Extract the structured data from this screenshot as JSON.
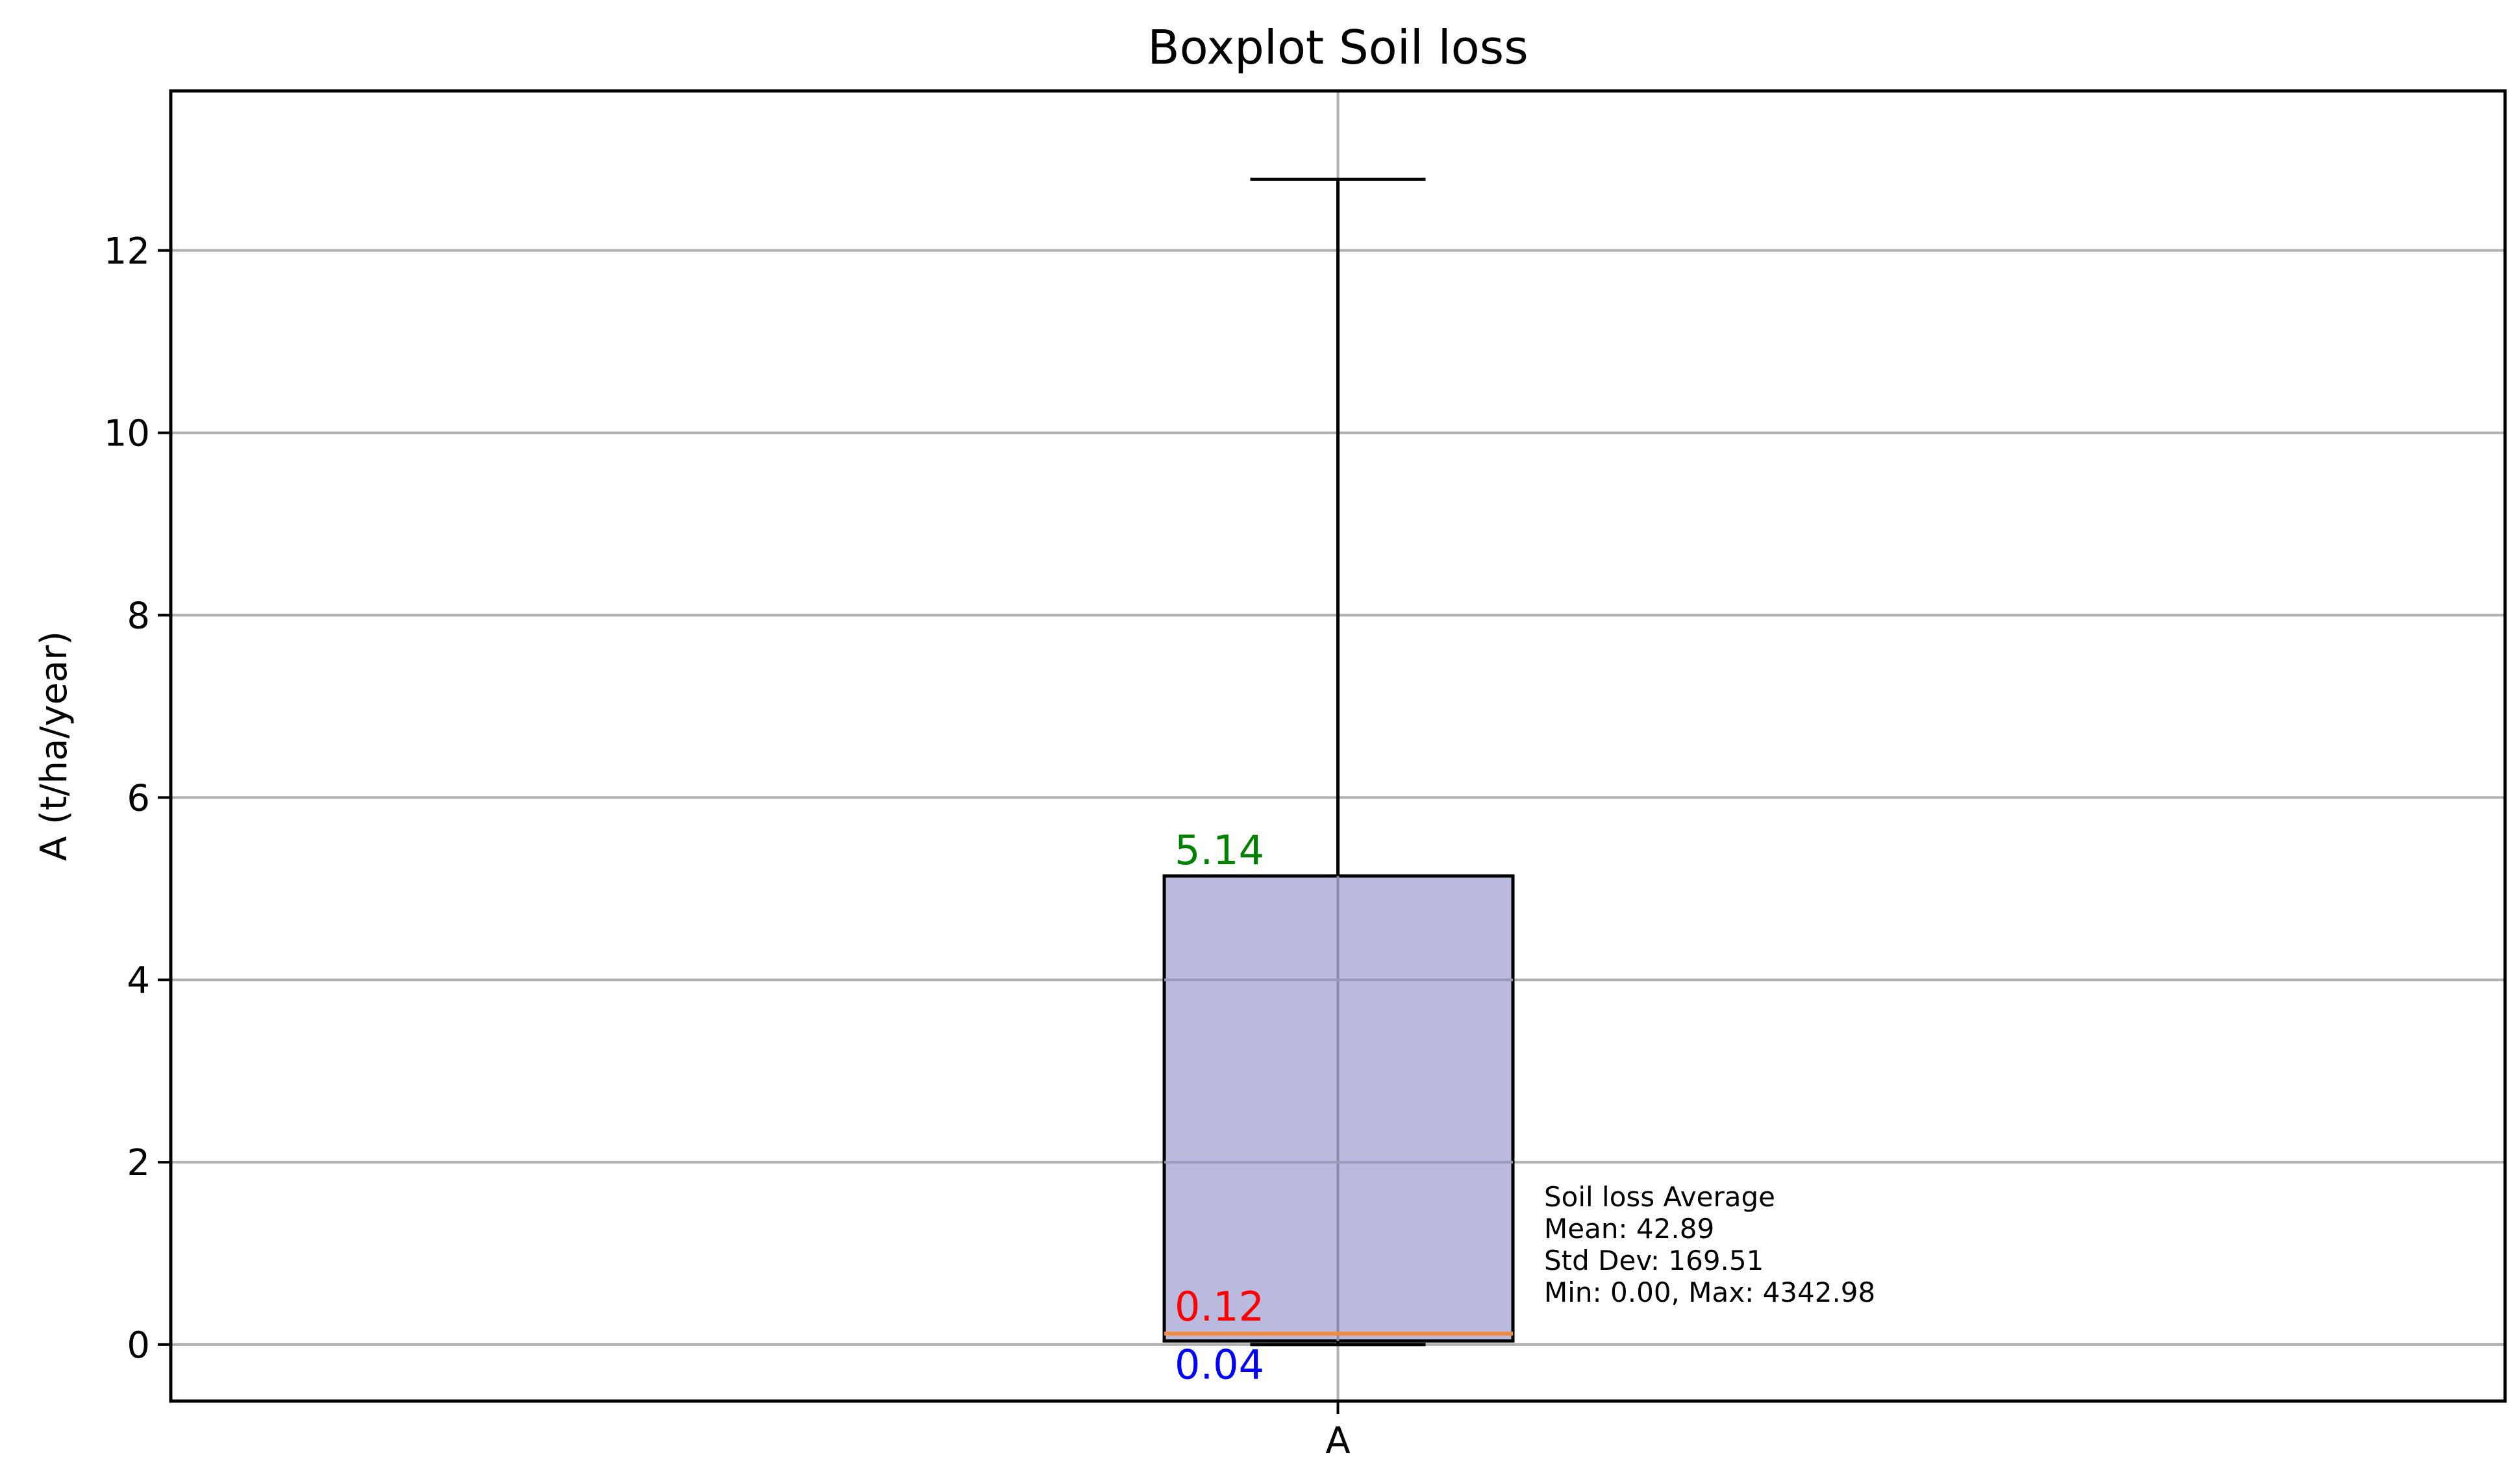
{
  "chart_data": {
    "type": "boxplot",
    "title": "Boxplot Soil loss",
    "xlabel": "",
    "ylabel": "A (t/ha/year)",
    "categories": [
      "A"
    ],
    "ylim": [
      -0.62,
      13.75
    ],
    "y_ticks": [
      0,
      2,
      4,
      6,
      8,
      10,
      12
    ],
    "y_tick_labels": [
      "0",
      "2",
      "4",
      "6",
      "8",
      "10",
      "12"
    ],
    "grid": "horizontal and vertical",
    "box": {
      "category": "A",
      "q1": 0.04,
      "median": 0.12,
      "q3": 5.14,
      "whisker_low": 0.0,
      "whisker_high": 12.78
    },
    "annotations": [
      {
        "id": "q3",
        "text": "5.14",
        "value": 5.14,
        "color": "#008000"
      },
      {
        "id": "median",
        "text": "0.12",
        "value": 0.12,
        "color": "#ff0000"
      },
      {
        "id": "q1",
        "text": "0.04",
        "value": 0.04,
        "color": "#0000ff"
      }
    ],
    "stats_box": [
      "Soil loss Average",
      "Mean: 42.89",
      "Std Dev: 169.51",
      "Min: 0.00, Max: 4342.98"
    ],
    "colors": {
      "box_fill": "#b9bade",
      "median_line": "#f08a3c",
      "grid": "#b0b0b0"
    }
  }
}
